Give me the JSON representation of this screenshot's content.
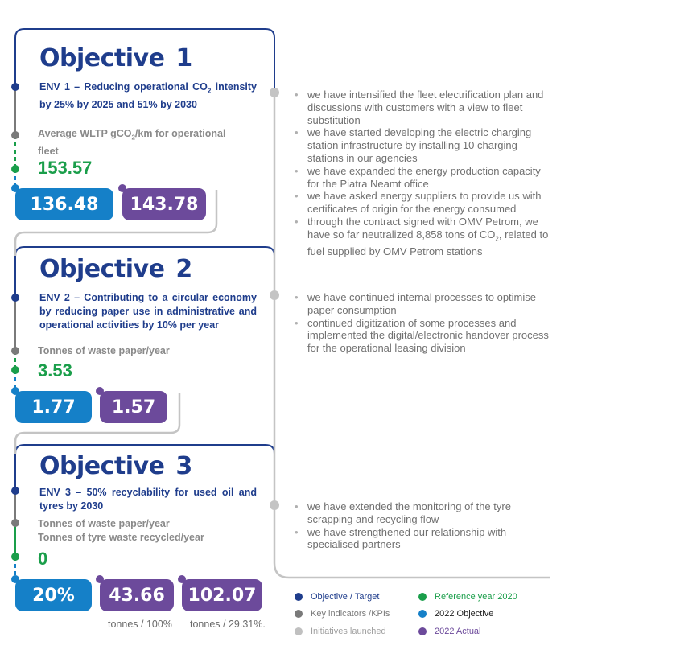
{
  "objectives": [
    {
      "title_word": "Objective",
      "title_num": "1",
      "target_parts": [
        "ENV 1 – Reducing operational CO",
        "2",
        " intensity by 25% by 2025 and 51% by 2030"
      ],
      "kpi_parts": [
        "Average WLTP gCO",
        "2",
        "/km for operational fleet"
      ],
      "reference": "153.57",
      "objective_2022": "136.48",
      "actual_2022": "143.78"
    },
    {
      "title_word": "Objective",
      "title_num": "2",
      "target": "ENV 2 – Contributing to a circular economy by reducing paper use in administrative and operational activities by 10% per year",
      "kpi": "Tonnes of waste paper/year",
      "reference": "3.53",
      "objective_2022": "1.77",
      "actual_2022": "1.57"
    },
    {
      "title_word": "Objective",
      "title_num": "3",
      "target": "ENV 3 – 50% recyclability for used oil and tyres by 2030",
      "kpi_line1": "Tonnes of waste paper/year",
      "kpi_line2": "Tonnes of tyre waste recycled/year",
      "reference": "0",
      "objective_2022": "20%",
      "actual_2022_a": "43.66",
      "actual_2022_b": "102.07",
      "unit_a": "tonnes / 100%",
      "unit_b": "tonnes / 29.31%."
    }
  ],
  "initiatives": {
    "obj1": [
      "we have intensified the fleet electrification plan and discussions with customers with a view to fleet substitution",
      "we have started developing the electric charging station infrastructure by installing 10 charging stations in our agencies",
      "we have expanded the energy production capacity for the Piatra Neamt office",
      "we have asked energy suppliers to provide us with certificates of origin for the energy consumed"
    ],
    "obj1_last_parts": [
      "through the contract signed with OMV Petrom, we have so far neutralized 8,858 tons of CO",
      "2",
      ", related to fuel supplied by OMV Petrom stations"
    ],
    "obj2": [
      "we have continued internal processes to optimise paper consumption",
      "continued digitization of some processes and implemented the digital/electronic handover process for the operational leasing division"
    ],
    "obj3": [
      "we have extended the monitoring of the tyre scrapping and recycling flow",
      "we have strengthened our relationship with specialised partners"
    ]
  },
  "legend": [
    {
      "label": "Objective / Target",
      "color": "#1f3d8c",
      "text_color": "#1f3d8c"
    },
    {
      "label": "Key indicators /KPIs",
      "color": "#7a7a7a",
      "text_color": "#7a7a7a"
    },
    {
      "label": "Initiatives launched",
      "color": "#c0c0c0",
      "text_color": "#a0a0a0"
    },
    {
      "label": "Reference year 2020",
      "color": "#1a9e4a",
      "text_color": "#1a9e4a"
    },
    {
      "label": "2022 Objective",
      "color": "#1580c8",
      "text_color": "#222222"
    },
    {
      "label": "2022 Actual",
      "color": "#6c4a9b",
      "text_color": "#6c4a9b"
    }
  ]
}
